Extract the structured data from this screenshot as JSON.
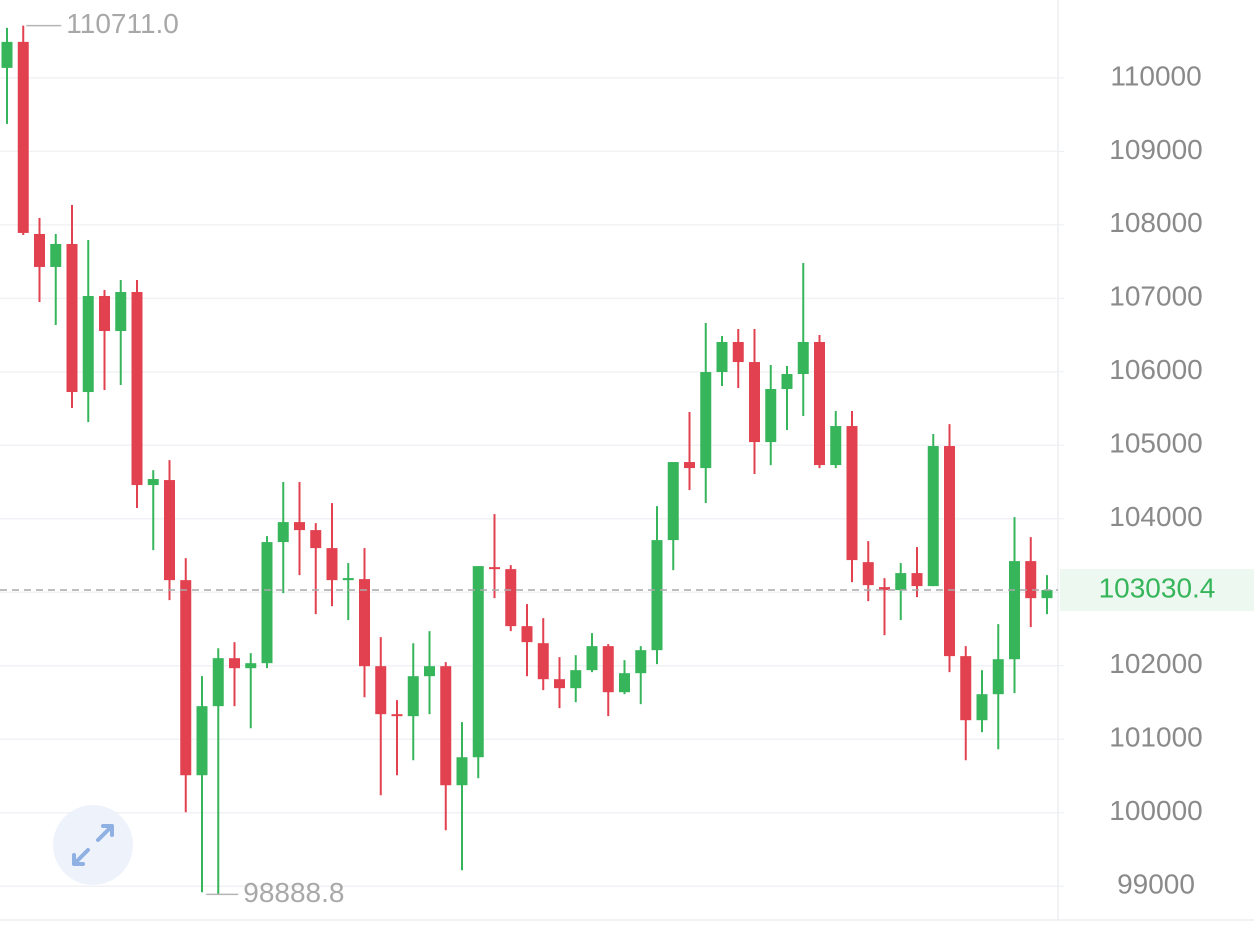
{
  "chart_data": {
    "type": "candlestick",
    "open": [
      110136,
      110490,
      107876,
      107427,
      107740,
      105725,
      107032,
      106555,
      107086,
      104459,
      104527,
      103165,
      100510,
      101450,
      102103,
      101967,
      102035,
      103683,
      103955,
      103846,
      103601,
      103165,
      103179,
      101994,
      101341,
      101314,
      101858,
      101994,
      100374,
      100755,
      103342,
      103315,
      102539,
      102307,
      101817,
      101695,
      101940,
      102267,
      101640,
      101899,
      102212,
      103710,
      104772,
      104690,
      105997,
      106406,
      106133,
      105044,
      105766,
      105970,
      106406,
      104731,
      105262,
      103410,
      103070,
      103029,
      103261,
      103084,
      104990,
      102131,
      101259,
      101613,
      102089,
      103424,
      102920
    ],
    "high": [
      110681,
      110711,
      108094,
      107876,
      108271,
      107794,
      107114,
      107250,
      107250,
      104663,
      104799,
      103465,
      101858,
      102239,
      102321,
      102171,
      103764,
      104500,
      104500,
      103941,
      104214,
      103397,
      103601,
      102389,
      101532,
      102307,
      102471,
      102049,
      101232,
      103356,
      104064,
      103370,
      102839,
      102648,
      102117,
      102144,
      102444,
      102294,
      102076,
      102267,
      104173,
      104772,
      105453,
      106664,
      106487,
      106583,
      106583,
      106092,
      106079,
      107481,
      106501,
      105466,
      105466,
      103696,
      103192,
      103397,
      103615,
      105153,
      105289,
      102267,
      101940,
      102566,
      104023,
      103751,
      103233
    ],
    "low": [
      109374,
      107862,
      106950,
      106637,
      105507,
      105316,
      105752,
      105820,
      104146,
      103574,
      102893,
      100006,
      98918,
      98888.8,
      101450,
      101150,
      101967,
      102988,
      103233,
      102702,
      102811,
      102621,
      101572,
      100238,
      100510,
      100714,
      101341,
      99761,
      99217,
      100469,
      102920,
      102471,
      101858,
      101668,
      101423,
      101504,
      101913,
      101314,
      101613,
      101477,
      102022,
      103301,
      104391,
      104214,
      105807,
      105779,
      104609,
      104731,
      105207,
      105398,
      104690,
      104690,
      103138,
      102879,
      102416,
      102621,
      102934,
      103084,
      101913,
      100714,
      101096,
      100864,
      101627,
      102525,
      102702
    ],
    "close": [
      110490,
      107890,
      107427,
      107740,
      105725,
      107032,
      106555,
      107086,
      104459,
      104541,
      103165,
      100510,
      101450,
      102103,
      101967,
      102035,
      103683,
      103955,
      103846,
      103601,
      103165,
      103193,
      101994,
      101341,
      101314,
      101858,
      101994,
      100374,
      100755,
      103356,
      103315,
      102539,
      102321,
      101817,
      101695,
      101940,
      102267,
      101640,
      101899,
      102212,
      103710,
      104772,
      104690,
      105997,
      106406,
      106133,
      105044,
      105766,
      105970,
      106406,
      104731,
      105262,
      103438,
      103097,
      103029,
      103261,
      103084,
      104990,
      102131,
      101259,
      101613,
      102089,
      103424,
      102920,
      103030.4
    ],
    "up_color": "#36b55b",
    "down_color": "#e2414f",
    "ylim": [
      98540,
      111060
    ],
    "yticks": [
      99000,
      100000,
      101000,
      102000,
      103000,
      104000,
      105000,
      106000,
      107000,
      108000,
      109000,
      110000
    ],
    "grid": true,
    "high_marker": {
      "value": 110711,
      "label": "110711.0"
    },
    "low_marker": 98888.8,
    "last_price": 103030.4
  }
}
